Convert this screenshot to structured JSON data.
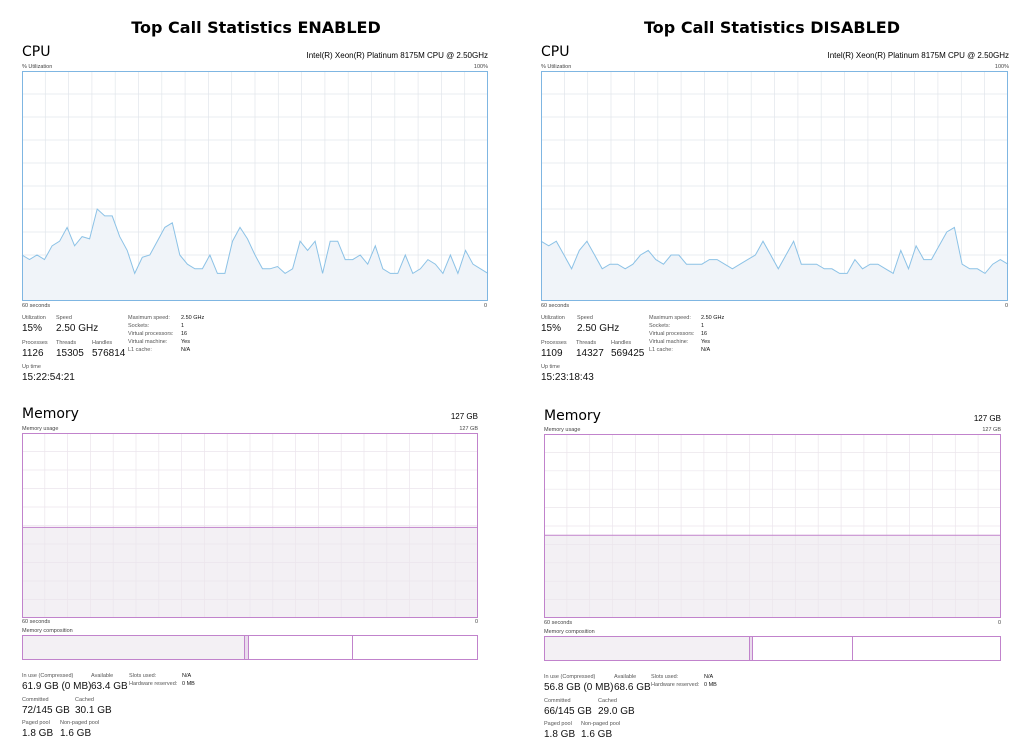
{
  "colors": {
    "cpu_line": "#8cc2e6",
    "cpu_fill": "#f0f4f9",
    "cpu_border": "#7fb6e2",
    "grid": "#e2e6eb",
    "mem_border": "#c183cc",
    "mem_fill": "#f3f0f4",
    "mem_grid": "#ebe5ec"
  },
  "panels": [
    {
      "heading": "Top Call Statistics ENABLED",
      "cpu": {
        "title": "CPU",
        "processor": "Intel(R) Xeon(R) Platinum 8175M CPU @ 2.50GHz",
        "util_label": "% Utilization",
        "max_label": "100%",
        "time_label": "60 seconds",
        "zero_label": "0",
        "history": [
          20,
          18,
          20,
          18,
          24,
          26,
          32,
          24,
          28,
          27,
          40,
          37,
          37,
          28,
          22,
          12,
          19,
          20,
          26,
          32,
          34,
          20,
          16,
          14,
          14,
          20,
          12,
          12,
          26,
          32,
          27,
          20,
          14,
          14,
          15,
          12,
          14,
          26,
          22,
          26,
          12,
          26,
          26,
          18,
          18,
          20,
          16,
          24,
          14,
          12,
          12,
          20,
          12,
          14,
          18,
          16,
          12,
          20,
          12,
          22,
          16,
          14,
          12
        ],
        "stats": {
          "utilization_label": "Utilization",
          "utilization": "15%",
          "speed_label": "Speed",
          "speed": "2.50 GHz",
          "processes_label": "Processes",
          "processes": "1126",
          "threads_label": "Threads",
          "threads": "15305",
          "handles_label": "Handles",
          "handles": "576814",
          "uptime_label": "Up time",
          "uptime": "15:22:54:21"
        },
        "specs": [
          {
            "label": "Maximum speed:",
            "value": "2.50 GHz"
          },
          {
            "label": "Sockets:",
            "value": "1"
          },
          {
            "label": "Virtual processors:",
            "value": "16"
          },
          {
            "label": "Virtual machine:",
            "value": "Yes"
          },
          {
            "label": "L1 cache:",
            "value": "N/A"
          }
        ]
      },
      "memory": {
        "title": "Memory",
        "total": "127 GB",
        "usage_label": "Memory usage",
        "max_label": "127 GB",
        "time_label": "60 seconds",
        "zero_label": "0",
        "used_fraction": 0.49,
        "composition_label": "Memory composition",
        "composition": {
          "in_use": 0.49,
          "modified": 0.007,
          "standby": 0.23
        },
        "stats": {
          "inuse_label": "In use (Compressed)",
          "inuse": "61.9 GB (0 MB)",
          "available_label": "Available",
          "available": "63.4 GB",
          "committed_label": "Committed",
          "committed": "72/145 GB",
          "cached_label": "Cached",
          "cached": "30.1 GB",
          "paged_label": "Paged pool",
          "paged": "1.8 GB",
          "nonpaged_label": "Non-paged pool",
          "nonpaged": "1.6 GB"
        },
        "specs": [
          {
            "label": "Slots used:",
            "value": "N/A"
          },
          {
            "label": "Hardware reserved:",
            "value": "0 MB"
          }
        ]
      }
    },
    {
      "heading": "Top Call Statistics DISABLED",
      "cpu": {
        "title": "CPU",
        "processor": "Intel(R) Xeon(R) Platinum 8175M CPU @ 2.50GHz",
        "util_label": "% Utilization",
        "max_label": "100%",
        "time_label": "60 seconds",
        "zero_label": "0",
        "history": [
          26,
          24,
          26,
          20,
          14,
          22,
          26,
          20,
          14,
          16,
          16,
          14,
          16,
          20,
          22,
          18,
          16,
          20,
          20,
          16,
          16,
          16,
          18,
          18,
          16,
          14,
          16,
          18,
          20,
          26,
          20,
          14,
          20,
          26,
          16,
          16,
          16,
          14,
          14,
          12,
          12,
          18,
          14,
          16,
          16,
          14,
          12,
          22,
          14,
          24,
          18,
          18,
          24,
          30,
          32,
          16,
          14,
          14,
          12,
          16,
          18,
          16
        ],
        "stats": {
          "utilization_label": "Utilization",
          "utilization": "15%",
          "speed_label": "Speed",
          "speed": "2.50 GHz",
          "processes_label": "Processes",
          "processes": "1109",
          "threads_label": "Threads",
          "threads": "14327",
          "handles_label": "Handles",
          "handles": "569425",
          "uptime_label": "Up time",
          "uptime": "15:23:18:43"
        },
        "specs": [
          {
            "label": "Maximum speed:",
            "value": "2.50 GHz"
          },
          {
            "label": "Sockets:",
            "value": "1"
          },
          {
            "label": "Virtual processors:",
            "value": "16"
          },
          {
            "label": "Virtual machine:",
            "value": "Yes"
          },
          {
            "label": "L1 cache:",
            "value": "N/A"
          }
        ]
      },
      "memory": {
        "title": "Memory",
        "total": "127 GB",
        "usage_label": "Memory usage",
        "max_label": "127 GB",
        "time_label": "60 seconds",
        "zero_label": "0",
        "used_fraction": 0.45,
        "composition_label": "Memory composition",
        "composition": {
          "in_use": 0.45,
          "modified": 0.007,
          "standby": 0.22
        },
        "stats": {
          "inuse_label": "In use (Compressed)",
          "inuse": "56.8 GB (0 MB)",
          "available_label": "Available",
          "available": "68.6 GB",
          "committed_label": "Committed",
          "committed": "66/145 GB",
          "cached_label": "Cached",
          "cached": "29.0 GB",
          "paged_label": "Paged pool",
          "paged": "1.8 GB",
          "nonpaged_label": "Non-paged pool",
          "nonpaged": "1.6 GB"
        },
        "specs": [
          {
            "label": "Slots used:",
            "value": "N/A"
          },
          {
            "label": "Hardware reserved:",
            "value": "0 MB"
          }
        ]
      }
    }
  ]
}
